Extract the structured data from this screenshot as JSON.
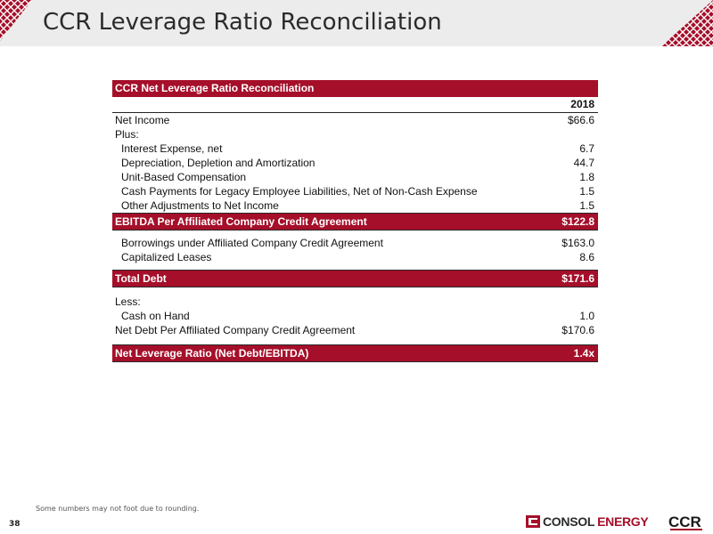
{
  "slide": {
    "title": "CCR Leverage Ratio Reconciliation",
    "footnote": "Some numbers may not foot due to rounding.",
    "page_number": "38"
  },
  "table": {
    "header": "CCR Net Leverage Ratio Reconciliation",
    "year": "2018",
    "net_income": {
      "label": "Net Income",
      "value": "$66.6"
    },
    "plus_label": "Plus:",
    "plus_items": [
      {
        "label": "Interest Expense, net",
        "value": "6.7"
      },
      {
        "label": "Depreciation, Depletion and Amortization",
        "value": "44.7"
      },
      {
        "label": "Unit-Based Compensation",
        "value": "1.8"
      },
      {
        "label": "Cash Payments for Legacy Employee Liabilities, Net of Non-Cash Expense",
        "value": "1.5"
      },
      {
        "label": "Other Adjustments to Net Income",
        "value": "1.5"
      }
    ],
    "ebitda": {
      "label": "EBITDA Per Affiliated Company Credit Agreement",
      "value": "$122.8"
    },
    "debt_items": [
      {
        "label": "Borrowings under Affiliated Company Credit Agreement",
        "value": "$163.0"
      },
      {
        "label": "Capitalized Leases",
        "value": "8.6"
      }
    ],
    "total_debt": {
      "label": "Total Debt",
      "value": "$171.6"
    },
    "less_label": "Less:",
    "cash_on_hand": {
      "label": "Cash on Hand",
      "value": "1.0"
    },
    "net_debt": {
      "label": "Net Debt Per Affiliated Company Credit Agreement",
      "value": "$170.6"
    },
    "ratio": {
      "label": "Net Leverage Ratio (Net Debt/EBITDA)",
      "value": "1.4x"
    }
  },
  "logos": {
    "consol_word1": "CONSOL",
    "consol_word2": "ENERGY",
    "ccr_mark": "CCR"
  },
  "colors": {
    "brand_red": "#a50f2a",
    "title_bar": "#ececec"
  }
}
